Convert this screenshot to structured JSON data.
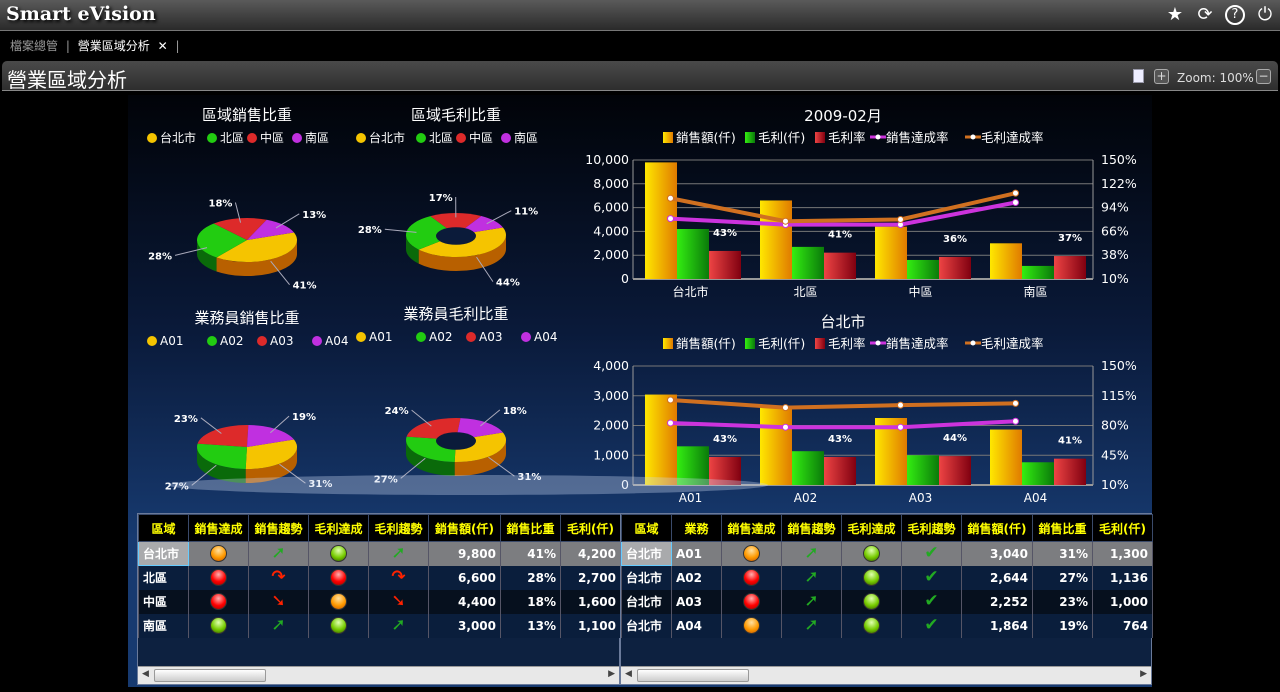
{
  "app": {
    "title": "Smart eVision",
    "icons": [
      "star-icon",
      "refresh-icon",
      "help-icon",
      "power-icon"
    ]
  },
  "tabs": [
    {
      "label": "檔案總管"
    },
    {
      "label": "營業區域分析",
      "active": true
    }
  ],
  "page": {
    "title": "營業區域分析",
    "zoom_label": "Zoom: 100%"
  },
  "pies": [
    {
      "title": "區域銷售比重",
      "legend": [
        "台北市",
        "北區",
        "中區",
        "南區"
      ],
      "values": [
        41,
        28,
        18,
        13
      ],
      "labels": [
        "41%",
        "28%",
        "18%",
        "13%"
      ],
      "donut": false
    },
    {
      "title": "區域毛利比重",
      "legend": [
        "台北市",
        "北區",
        "中區",
        "南區"
      ],
      "values": [
        44,
        28,
        17,
        11
      ],
      "labels": [
        "44%",
        "28%",
        "17%",
        "11%"
      ],
      "donut": true
    },
    {
      "title": "業務員銷售比重",
      "legend": [
        "A01",
        "A02",
        "A03",
        "A04"
      ],
      "values": [
        31,
        27,
        23,
        19
      ],
      "labels": [
        "31%",
        "27%",
        "23%",
        "19%"
      ],
      "donut": false
    },
    {
      "title": "業務員毛利比重",
      "legend": [
        "A01",
        "A02",
        "A03",
        "A04"
      ],
      "values": [
        31,
        27,
        24,
        18
      ],
      "labels": [
        "31%",
        "27%",
        "24%",
        "18%"
      ],
      "donut": true
    }
  ],
  "colors": {
    "series1": "#f5c400",
    "series2": "#22cc11",
    "series3": "#dd2a2a",
    "series4": "#c030e0",
    "line1": "#cc33dd",
    "line2": "#d07020",
    "header_text": "#ffff00"
  },
  "chart_data": [
    {
      "type": "bar",
      "title": "2009-02月",
      "categories": [
        "台北市",
        "北區",
        "中區",
        "南區"
      ],
      "left_ylim": [
        0,
        10000
      ],
      "left_ticks": [
        "0",
        "2,000",
        "4,000",
        "6,000",
        "8,000",
        "10,000"
      ],
      "right_ylim": [
        10,
        150
      ],
      "right_ticks": [
        "10%",
        "38%",
        "66%",
        "94%",
        "122%",
        "150%"
      ],
      "series": [
        {
          "name": "銷售額(仟)",
          "kind": "bar",
          "axis": "left",
          "values": [
            9800,
            6600,
            4400,
            3000
          ]
        },
        {
          "name": "毛利(仟)",
          "kind": "bar",
          "axis": "left",
          "values": [
            4200,
            2700,
            1600,
            1100
          ]
        },
        {
          "name": "毛利率",
          "kind": "bar",
          "axis": "right",
          "values": [
            43,
            41,
            36,
            37
          ],
          "labels": [
            "43%",
            "41%",
            "36%",
            "37%"
          ]
        },
        {
          "name": "銷售達成率",
          "kind": "line",
          "axis": "right",
          "values": [
            81,
            74,
            74,
            100
          ]
        },
        {
          "name": "毛利達成率",
          "kind": "line",
          "axis": "right",
          "values": [
            105,
            78,
            80,
            111
          ]
        }
      ],
      "grid": true,
      "legend": "top"
    },
    {
      "type": "bar",
      "title": "台北市",
      "categories": [
        "A01",
        "A02",
        "A03",
        "A04"
      ],
      "left_ylim": [
        0,
        4000
      ],
      "left_ticks": [
        "0",
        "1,000",
        "2,000",
        "3,000",
        "4,000"
      ],
      "right_ylim": [
        10,
        150
      ],
      "right_ticks": [
        "10%",
        "45%",
        "80%",
        "115%",
        "150%"
      ],
      "series": [
        {
          "name": "銷售額(仟)",
          "kind": "bar",
          "axis": "left",
          "values": [
            3040,
            2644,
            2252,
            1864
          ]
        },
        {
          "name": "毛利(仟)",
          "kind": "bar",
          "axis": "left",
          "values": [
            1300,
            1136,
            1000,
            764
          ]
        },
        {
          "name": "毛利率",
          "kind": "bar",
          "axis": "right",
          "values": [
            43,
            43,
            44,
            41
          ],
          "labels": [
            "43%",
            "43%",
            "44%",
            "41%"
          ]
        },
        {
          "name": "銷售達成率",
          "kind": "line",
          "axis": "right",
          "values": [
            83,
            78,
            78,
            85
          ]
        },
        {
          "name": "毛利達成率",
          "kind": "line",
          "axis": "right",
          "values": [
            110,
            101,
            104,
            106
          ]
        }
      ],
      "grid": true,
      "legend": "top"
    }
  ],
  "region_table": {
    "headers": [
      "區域",
      "銷售達成",
      "銷售趨勢",
      "毛利達成",
      "毛利趨勢",
      "銷售額(仟)",
      "銷售比重",
      "毛利(仟)"
    ],
    "rows": [
      {
        "region": "台北市",
        "sales_light": "orange",
        "sales_trend": "up",
        "profit_light": "green",
        "profit_trend": "up",
        "sales": "9,800",
        "ratio": "41%",
        "profit": "4,200"
      },
      {
        "region": "北區",
        "sales_light": "red",
        "sales_trend": "zig",
        "profit_light": "red",
        "profit_trend": "zig",
        "sales": "6,600",
        "ratio": "28%",
        "profit": "2,700"
      },
      {
        "region": "中區",
        "sales_light": "red",
        "sales_trend": "down",
        "profit_light": "orange",
        "profit_trend": "down",
        "sales": "4,400",
        "ratio": "18%",
        "profit": "1,600"
      },
      {
        "region": "南區",
        "sales_light": "green",
        "sales_trend": "up",
        "profit_light": "green",
        "profit_trend": "up",
        "sales": "3,000",
        "ratio": "13%",
        "profit": "1,100"
      }
    ]
  },
  "rep_table": {
    "headers": [
      "區域",
      "業務",
      "銷售達成",
      "銷售趨勢",
      "毛利達成",
      "毛利趨勢",
      "銷售額(仟)",
      "銷售比重",
      "毛利(仟)"
    ],
    "rows": [
      {
        "region": "台北市",
        "rep": "A01",
        "sales_light": "orange",
        "sales_trend": "up",
        "profit_light": "green",
        "profit_trend": "check",
        "sales": "3,040",
        "ratio": "31%",
        "profit": "1,300"
      },
      {
        "region": "台北市",
        "rep": "A02",
        "sales_light": "red",
        "sales_trend": "up",
        "profit_light": "green",
        "profit_trend": "check",
        "sales": "2,644",
        "ratio": "27%",
        "profit": "1,136"
      },
      {
        "region": "台北市",
        "rep": "A03",
        "sales_light": "red",
        "sales_trend": "up",
        "profit_light": "green",
        "profit_trend": "check",
        "sales": "2,252",
        "ratio": "23%",
        "profit": "1,000"
      },
      {
        "region": "台北市",
        "rep": "A04",
        "sales_light": "orange",
        "sales_trend": "up",
        "profit_light": "green",
        "profit_trend": "check",
        "sales": "1,864",
        "ratio": "19%",
        "profit": "764"
      }
    ]
  }
}
